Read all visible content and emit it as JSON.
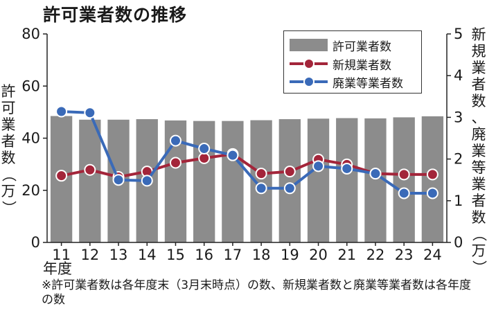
{
  "chart_data": {
    "type": "bar",
    "title": "許可業者数の推移",
    "categories": [
      "11",
      "12",
      "13",
      "14",
      "15",
      "16",
      "17",
      "18",
      "19",
      "20",
      "21",
      "22",
      "23",
      "24"
    ],
    "x_unit": "年度",
    "ylabel_left": "許可業者数（万）",
    "ylabel_right": "新規業者数、廃業等業者数（万）",
    "ylim_left": [
      0,
      80
    ],
    "yticks_left": [
      0,
      20,
      40,
      60,
      80
    ],
    "ylim_right": [
      0,
      5
    ],
    "yticks_right": [
      0,
      1,
      2,
      3,
      4,
      5
    ],
    "grid": false,
    "legend_position": "top-right",
    "series": [
      {
        "name": "許可業者数",
        "type": "bar",
        "axis": "left",
        "color": "#8c8c8c",
        "values": [
          48.5,
          47.1,
          47.1,
          47.3,
          46.8,
          46.6,
          46.6,
          46.9,
          47.3,
          47.5,
          47.7,
          47.6,
          48.0,
          48.4
        ]
      },
      {
        "name": "新規業者数",
        "type": "line",
        "axis": "right",
        "color": "#a3253a",
        "values": [
          1.6,
          1.74,
          1.57,
          1.7,
          1.91,
          2.02,
          2.12,
          1.65,
          1.7,
          1.99,
          1.87,
          1.65,
          1.63,
          1.63
        ]
      },
      {
        "name": "廃業等業者数",
        "type": "line",
        "axis": "right",
        "color": "#3a6ab8",
        "values": [
          3.14,
          3.11,
          1.5,
          1.48,
          2.44,
          2.25,
          2.09,
          1.3,
          1.3,
          1.83,
          1.77,
          1.65,
          1.18,
          1.18
        ]
      }
    ],
    "footnote": "※許可業者数は各年度末（3月末時点）の数、新規業者数と廃業等業者数は各年度の数"
  }
}
